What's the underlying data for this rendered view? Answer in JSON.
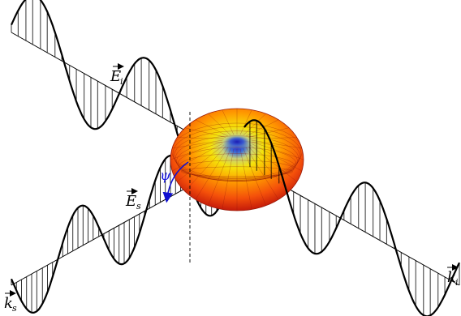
{
  "labels": {
    "e_incident": {
      "main": "E",
      "sub": "i"
    },
    "e_scattered": {
      "main": "E",
      "sub": "s"
    },
    "k_incident": {
      "main": "k",
      "sub": "i"
    },
    "k_scattered": {
      "main": "k",
      "sub": "s"
    },
    "angle": "ψ"
  },
  "colors": {
    "wave": "#000000",
    "angle_arc": "#1010d0",
    "angle_label": "#1a1ae0",
    "dipole_outer": "#c81e0a",
    "dipole_mid": "#ff5a00",
    "dipole_top": "#ffb400",
    "dipole_center": "#3030c0"
  }
}
